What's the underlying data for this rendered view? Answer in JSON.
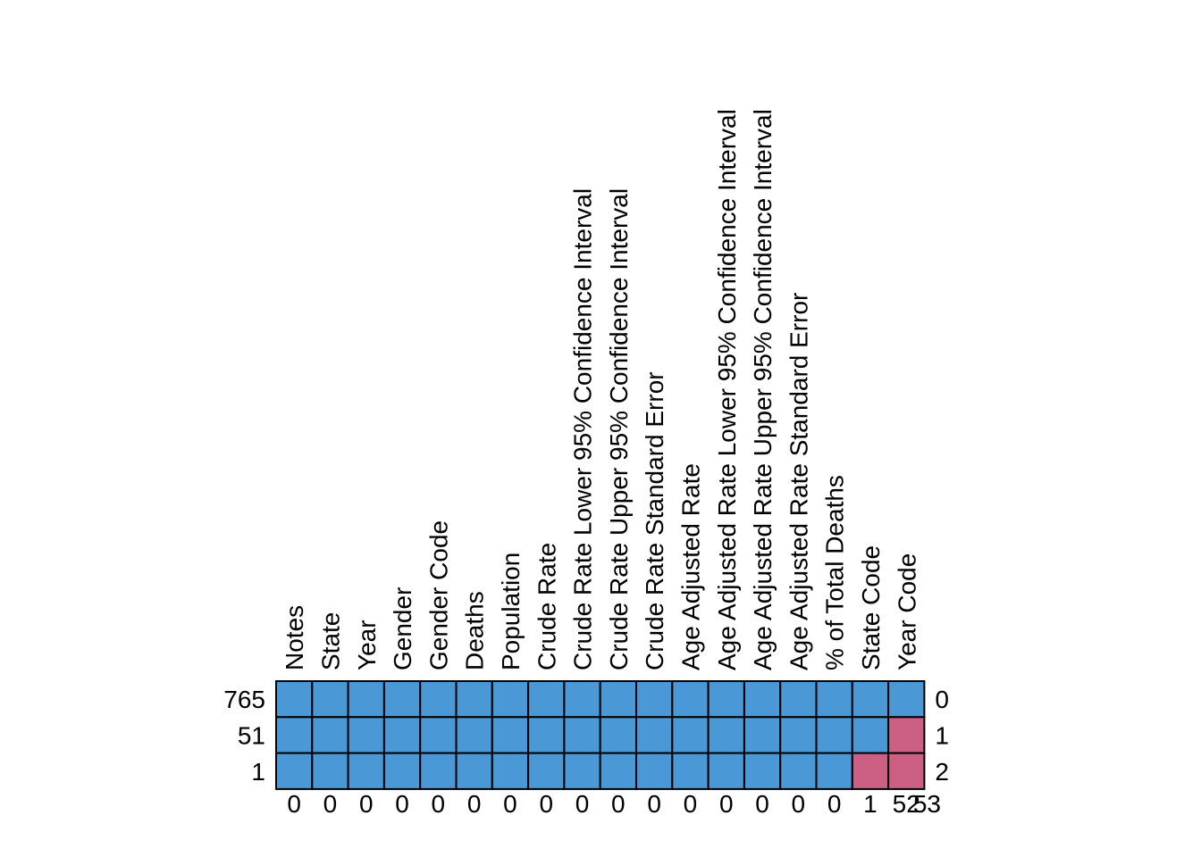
{
  "chart_data": {
    "type": "heatmap",
    "title": "",
    "xlabel": "",
    "ylabel": "",
    "columns": [
      "Notes",
      "State",
      "Year",
      "Gender",
      "Gender Code",
      "Deaths",
      "Population",
      "Crude Rate",
      "Crude Rate Lower 95% Confidence Interval",
      "Crude Rate Upper 95% Confidence Interval",
      "Crude Rate Standard Error",
      "Age Adjusted Rate",
      "Age Adjusted Rate Lower 95% Confidence Interval",
      "Age Adjusted Rate Upper 95% Confidence Interval",
      "Age Adjusted Rate Standard Error",
      "% of Total Deaths",
      "State Code",
      "Year Code"
    ],
    "row_counts": [
      "765",
      "51",
      "1"
    ],
    "row_missing_counts": [
      "0",
      "1",
      "2"
    ],
    "column_missing_counts": [
      "0",
      "0",
      "0",
      "0",
      "0",
      "0",
      "0",
      "0",
      "0",
      "0",
      "0",
      "0",
      "0",
      "0",
      "0",
      "0",
      "1",
      "52"
    ],
    "total_missing": "53",
    "matrix": [
      [
        0,
        0,
        0,
        0,
        0,
        0,
        0,
        0,
        0,
        0,
        0,
        0,
        0,
        0,
        0,
        0,
        0,
        0
      ],
      [
        0,
        0,
        0,
        0,
        0,
        0,
        0,
        0,
        0,
        0,
        0,
        0,
        0,
        0,
        0,
        0,
        0,
        1
      ],
      [
        0,
        0,
        0,
        0,
        0,
        0,
        0,
        0,
        0,
        0,
        0,
        0,
        0,
        0,
        0,
        0,
        1,
        1
      ]
    ],
    "colors": {
      "observed": "#4A98D6",
      "missing": "#CB5F84",
      "border": "#000000"
    }
  }
}
